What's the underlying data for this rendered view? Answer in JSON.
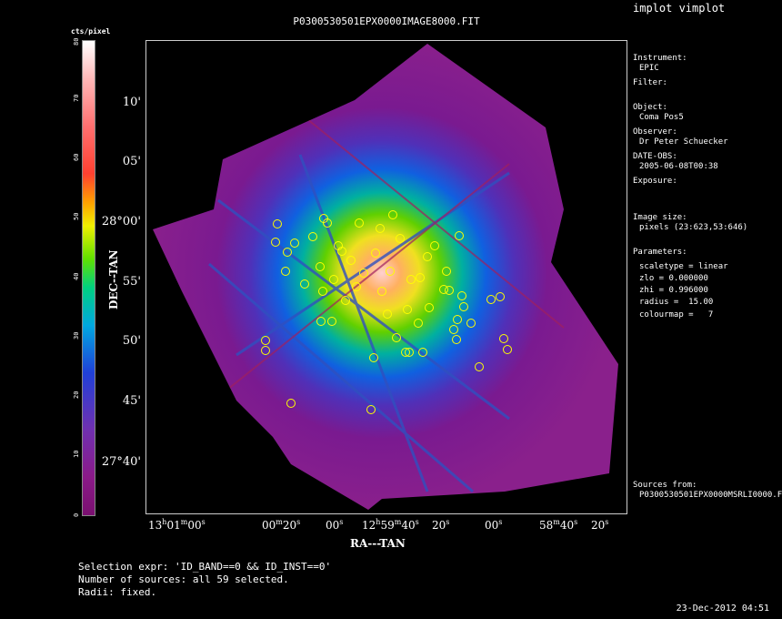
{
  "app_title": "implot vimplot",
  "image_title": "P0300530501EPX0000IMAGE8000.FIT",
  "colorbar": {
    "label": "cts/pixel",
    "ticks": [
      "0",
      "10",
      "20",
      "30",
      "40",
      "50",
      "60",
      "70",
      "80"
    ]
  },
  "axes": {
    "y_title": "DEC--TAN",
    "x_title": "RA---TAN",
    "y_labels": [
      "10'",
      "05'",
      "28°00'",
      "55'",
      "50'",
      "45'",
      "27°40'"
    ],
    "x_labels": [
      {
        "h": "13",
        "hs": "h",
        "m": "01",
        "ms": "m",
        "s": "00",
        "ss": "s"
      },
      {
        "h": "",
        "hs": "",
        "m": "00",
        "ms": "m",
        "s": "20",
        "ss": "s"
      },
      {
        "h": "",
        "hs": "",
        "m": "",
        "ms": "",
        "s": "00",
        "ss": "s"
      },
      {
        "h": "12",
        "hs": "h",
        "m": "59",
        "ms": "m",
        "s": "40",
        "ss": "s"
      },
      {
        "h": "",
        "hs": "",
        "m": "",
        "ms": "",
        "s": "20",
        "ss": "s"
      },
      {
        "h": "",
        "hs": "",
        "m": "",
        "ms": "",
        "s": "00",
        "ss": "s"
      },
      {
        "h": "",
        "hs": "",
        "m": "58",
        "ms": "m",
        "s": "40",
        "ss": "s"
      },
      {
        "h": "",
        "hs": "",
        "m": "",
        "ms": "",
        "s": "20",
        "ss": "s"
      }
    ]
  },
  "info": {
    "instrument_label": "Instrument:",
    "instrument": "EPIC",
    "filter_label": "Filter:",
    "object_label": "Object:",
    "object": "Coma Pos5",
    "observer_label": "Observer:",
    "observer": "Dr Peter Schuecker",
    "date_label": "DATE-OBS:",
    "date": "2005-06-08T00:38",
    "exposure_label": "Exposure:",
    "imagesize_label": "Image size:",
    "imagesize": "pixels (23:623,53:646)",
    "params_label": "Parameters:",
    "p1": "scaletype = linear",
    "p2": "zlo = 0.000000",
    "p3": "zhi = 0.996000",
    "p4": "radius =  15.00",
    "p5": "colourmap =   7",
    "sources_label": "Sources from:",
    "sources": "P0300530501EPX0000MSRLI0000.F"
  },
  "selection": {
    "expr": "Selection expr: 'ID_BAND==0 && ID_INST==0'",
    "count": "Number of sources: all 59 selected.",
    "radii": "Radii: fixed."
  },
  "timestamp": "23-Dec-2012 04:51",
  "colors": {
    "source_circle": "#ffff00",
    "purple": "#8a1a9a",
    "magenta": "#c040c0"
  },
  "sources_xy_note": "",
  "sources_count": 59
}
